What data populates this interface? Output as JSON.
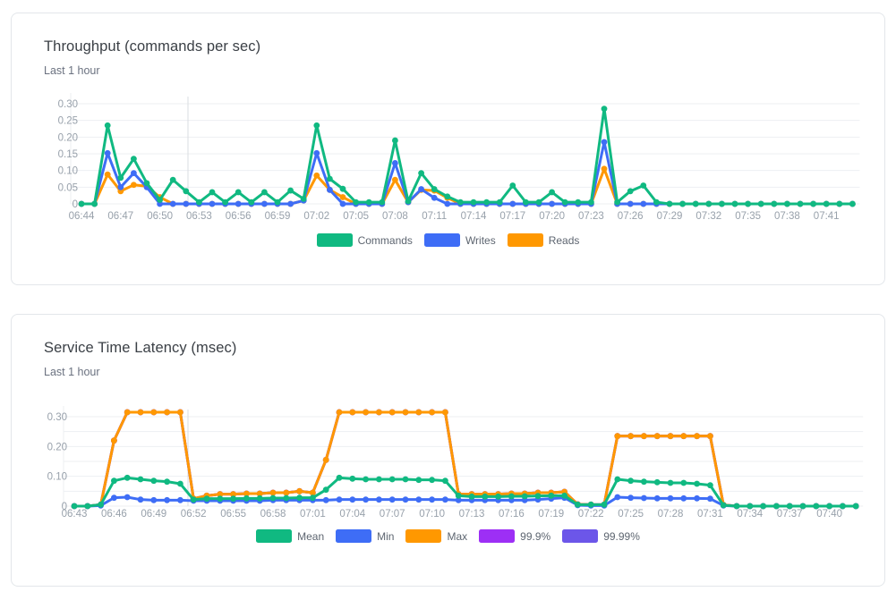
{
  "theme": {
    "background": "#ffffff",
    "card_border": "#e3e6ea",
    "grid_color": "#edeff2",
    "axis_text_color": "#98a1ab",
    "title_color": "#3b4046",
    "subtitle_color": "#6b7280",
    "cursor_line_color": "#d9dce0"
  },
  "chart_data": [
    {
      "type": "line",
      "title": "Throughput (commands per sec)",
      "subtitle": "Last 1 hour",
      "grid": true,
      "legend_position": "bottom",
      "ylim": [
        0,
        0.3
      ],
      "grid_step": 0.05,
      "yticks": [
        {
          "v": 0,
          "label": "0"
        },
        {
          "v": 0.05,
          "label": "0.05"
        },
        {
          "v": 0.1,
          "label": "0.10"
        },
        {
          "v": 0.15,
          "label": "0.15"
        },
        {
          "v": 0.2,
          "label": "0.20"
        },
        {
          "v": 0.25,
          "label": "0.25"
        },
        {
          "v": 0.3,
          "label": "0.30"
        }
      ],
      "xtick_every": 3,
      "xticks": [
        "06:44",
        "06:47",
        "06:50",
        "06:53",
        "06:56",
        "06:59",
        "07:02",
        "07:05",
        "07:08",
        "07:11",
        "07:14",
        "07:17",
        "07:20",
        "07:23",
        "07:26",
        "07:29",
        "07:32",
        "07:35",
        "07:38",
        "07:41"
      ],
      "x": [
        "06:44",
        "06:45",
        "06:46",
        "06:47",
        "06:48",
        "06:49",
        "06:50",
        "06:51",
        "06:52",
        "06:53",
        "06:54",
        "06:55",
        "06:56",
        "06:57",
        "06:58",
        "06:59",
        "07:00",
        "07:01",
        "07:02",
        "07:03",
        "07:04",
        "07:05",
        "07:06",
        "07:07",
        "07:08",
        "07:09",
        "07:10",
        "07:11",
        "07:12",
        "07:13",
        "07:14",
        "07:15",
        "07:16",
        "07:17",
        "07:18",
        "07:19",
        "07:20",
        "07:21",
        "07:22",
        "07:23",
        "07:24",
        "07:25",
        "07:26",
        "07:27",
        "07:28",
        "07:29",
        "07:30",
        "07:31",
        "07:32",
        "07:33",
        "07:34",
        "07:35",
        "07:36",
        "07:37",
        "07:38",
        "07:39",
        "07:40",
        "07:41",
        "07:42",
        "07:43"
      ],
      "series": [
        {
          "name": "Commands",
          "color": "#10b981",
          "values": [
            0,
            0,
            0.235,
            0.078,
            0.135,
            0.062,
            0.012,
            0.072,
            0.038,
            0.005,
            0.035,
            0.005,
            0.035,
            0.005,
            0.035,
            0.005,
            0.04,
            0.015,
            0.235,
            0.075,
            0.045,
            0.005,
            0.005,
            0.005,
            0.19,
            0.008,
            0.092,
            0.044,
            0.022,
            0.005,
            0.005,
            0.005,
            0.005,
            0.055,
            0.005,
            0.005,
            0.035,
            0.005,
            0.005,
            0.005,
            0.285,
            0.005,
            0.038,
            0.055,
            0.005,
            0,
            0,
            0,
            0,
            0,
            0,
            0,
            0,
            0,
            0,
            0,
            0,
            0,
            0,
            0
          ]
        },
        {
          "name": "Writes",
          "color": "#3e6df6",
          "values": [
            0,
            0,
            0.152,
            0.05,
            0.092,
            0.05,
            0,
            0,
            0,
            0,
            0,
            0,
            0,
            0,
            0,
            0,
            0,
            0.01,
            0.152,
            0.042,
            0,
            0,
            0,
            0,
            0.122,
            0.005,
            0.044,
            0.018,
            0,
            0,
            0,
            0,
            0,
            0,
            0,
            0,
            0,
            0,
            0,
            0,
            0.185,
            0,
            0,
            0,
            0,
            0,
            0,
            0,
            0,
            0,
            0,
            0,
            0,
            0,
            0,
            0,
            0,
            0,
            0,
            0
          ]
        },
        {
          "name": "Reads",
          "color": "#ff9800",
          "values": [
            0,
            0,
            0.088,
            0.038,
            0.057,
            0.053,
            0.02,
            0,
            0,
            0,
            0,
            0,
            0,
            0,
            0,
            0,
            0,
            0.01,
            0.085,
            0.042,
            0.02,
            0,
            0,
            0,
            0.072,
            0.005,
            0.042,
            0.04,
            0.018,
            0,
            0,
            0,
            0,
            0,
            0,
            0,
            0,
            0,
            0,
            0,
            0.105,
            0,
            0,
            0,
            0,
            0,
            0,
            0,
            0,
            0,
            0,
            0,
            0,
            0,
            0,
            0,
            0,
            0,
            0,
            0
          ]
        }
      ]
    },
    {
      "type": "line",
      "title": "Service Time Latency (msec)",
      "subtitle": "Last 1 hour",
      "grid": true,
      "legend_position": "bottom",
      "ylim": [
        0,
        0.3
      ],
      "grid_step": 0.05,
      "yticks": [
        {
          "v": 0,
          "label": "0"
        },
        {
          "v": 0.1,
          "label": "0.10"
        },
        {
          "v": 0.2,
          "label": "0.20"
        },
        {
          "v": 0.3,
          "label": "0.30"
        }
      ],
      "xtick_every": 3,
      "xticks": [
        "06:43",
        "06:46",
        "06:49",
        "06:52",
        "06:55",
        "06:58",
        "07:01",
        "07:04",
        "07:07",
        "07:10",
        "07:13",
        "07:16",
        "07:19",
        "07:22",
        "07:25",
        "07:28",
        "07:31",
        "07:34",
        "07:37",
        "07:40"
      ],
      "x": [
        "06:43",
        "06:44",
        "06:45",
        "06:46",
        "06:47",
        "06:48",
        "06:49",
        "06:50",
        "06:51",
        "06:52",
        "06:53",
        "06:54",
        "06:55",
        "06:56",
        "06:57",
        "06:58",
        "06:59",
        "07:00",
        "07:01",
        "07:02",
        "07:03",
        "07:04",
        "07:05",
        "07:06",
        "07:07",
        "07:08",
        "07:09",
        "07:10",
        "07:11",
        "07:12",
        "07:13",
        "07:14",
        "07:15",
        "07:16",
        "07:17",
        "07:18",
        "07:19",
        "07:20",
        "07:21",
        "07:22",
        "07:23",
        "07:24",
        "07:25",
        "07:26",
        "07:27",
        "07:28",
        "07:29",
        "07:30",
        "07:31",
        "07:32",
        "07:33",
        "07:34",
        "07:35",
        "07:36",
        "07:37",
        "07:38",
        "07:39",
        "07:40",
        "07:41",
        "07:42"
      ],
      "series": [
        {
          "name": "Mean",
          "color": "#10b981",
          "values": [
            0,
            0,
            0.005,
            0.085,
            0.095,
            0.09,
            0.085,
            0.082,
            0.075,
            0.022,
            0.025,
            0.025,
            0.025,
            0.026,
            0.026,
            0.027,
            0.027,
            0.028,
            0.028,
            0.055,
            0.095,
            0.092,
            0.09,
            0.09,
            0.09,
            0.09,
            0.088,
            0.088,
            0.085,
            0.035,
            0.032,
            0.032,
            0.032,
            0.033,
            0.033,
            0.034,
            0.035,
            0.035,
            0.005,
            0.005,
            0.005,
            0.09,
            0.085,
            0.082,
            0.08,
            0.078,
            0.078,
            0.075,
            0.07,
            0.003,
            0,
            0,
            0,
            0,
            0,
            0,
            0,
            0,
            0,
            0
          ]
        },
        {
          "name": "Min",
          "color": "#3e6df6",
          "values": [
            0,
            0,
            0.002,
            0.028,
            0.03,
            0.022,
            0.02,
            0.02,
            0.02,
            0.018,
            0.018,
            0.018,
            0.018,
            0.018,
            0.018,
            0.02,
            0.02,
            0.02,
            0.02,
            0.02,
            0.022,
            0.022,
            0.022,
            0.022,
            0.022,
            0.022,
            0.022,
            0.022,
            0.022,
            0.02,
            0.02,
            0.02,
            0.02,
            0.02,
            0.02,
            0.022,
            0.025,
            0.028,
            0.003,
            0.002,
            0.002,
            0.03,
            0.028,
            0.027,
            0.026,
            0.026,
            0.026,
            0.026,
            0.025,
            0.002,
            0,
            0,
            0,
            0,
            0,
            0,
            0,
            0,
            0,
            0
          ]
        },
        {
          "name": "Max",
          "color": "#ff9800",
          "values": [
            0,
            0,
            0.005,
            0.22,
            0.315,
            0.315,
            0.315,
            0.315,
            0.315,
            0.025,
            0.035,
            0.04,
            0.04,
            0.042,
            0.042,
            0.045,
            0.045,
            0.05,
            0.045,
            0.155,
            0.315,
            0.315,
            0.315,
            0.315,
            0.315,
            0.315,
            0.315,
            0.315,
            0.315,
            0.04,
            0.04,
            0.04,
            0.04,
            0.042,
            0.042,
            0.045,
            0.045,
            0.048,
            0.006,
            0.005,
            0.005,
            0.235,
            0.235,
            0.235,
            0.235,
            0.235,
            0.235,
            0.235,
            0.235,
            0.004,
            0,
            0,
            0,
            0,
            0,
            0,
            0,
            0,
            0,
            0
          ]
        },
        {
          "name": "99.9%",
          "color": "#9d2ff5",
          "overlaps": "Max",
          "values": [
            0,
            0,
            0.005,
            0.22,
            0.315,
            0.315,
            0.315,
            0.315,
            0.315,
            0.025,
            0.035,
            0.04,
            0.04,
            0.042,
            0.042,
            0.045,
            0.045,
            0.05,
            0.045,
            0.155,
            0.315,
            0.315,
            0.315,
            0.315,
            0.315,
            0.315,
            0.315,
            0.315,
            0.315,
            0.04,
            0.04,
            0.04,
            0.04,
            0.042,
            0.042,
            0.045,
            0.045,
            0.048,
            0.006,
            0.005,
            0.005,
            0.235,
            0.235,
            0.235,
            0.235,
            0.235,
            0.235,
            0.235,
            0.235,
            0.004,
            0,
            0,
            0,
            0,
            0,
            0,
            0,
            0,
            0,
            0
          ]
        },
        {
          "name": "99.99%",
          "color": "#6c56e9",
          "overlaps": "Max",
          "values": [
            0,
            0,
            0.005,
            0.22,
            0.315,
            0.315,
            0.315,
            0.315,
            0.315,
            0.025,
            0.035,
            0.04,
            0.04,
            0.042,
            0.042,
            0.045,
            0.045,
            0.05,
            0.045,
            0.155,
            0.315,
            0.315,
            0.315,
            0.315,
            0.315,
            0.315,
            0.315,
            0.315,
            0.315,
            0.04,
            0.04,
            0.04,
            0.04,
            0.042,
            0.042,
            0.045,
            0.045,
            0.048,
            0.006,
            0.005,
            0.005,
            0.235,
            0.235,
            0.235,
            0.235,
            0.235,
            0.235,
            0.235,
            0.235,
            0.004,
            0,
            0,
            0,
            0,
            0,
            0,
            0,
            0,
            0,
            0
          ]
        }
      ]
    }
  ]
}
